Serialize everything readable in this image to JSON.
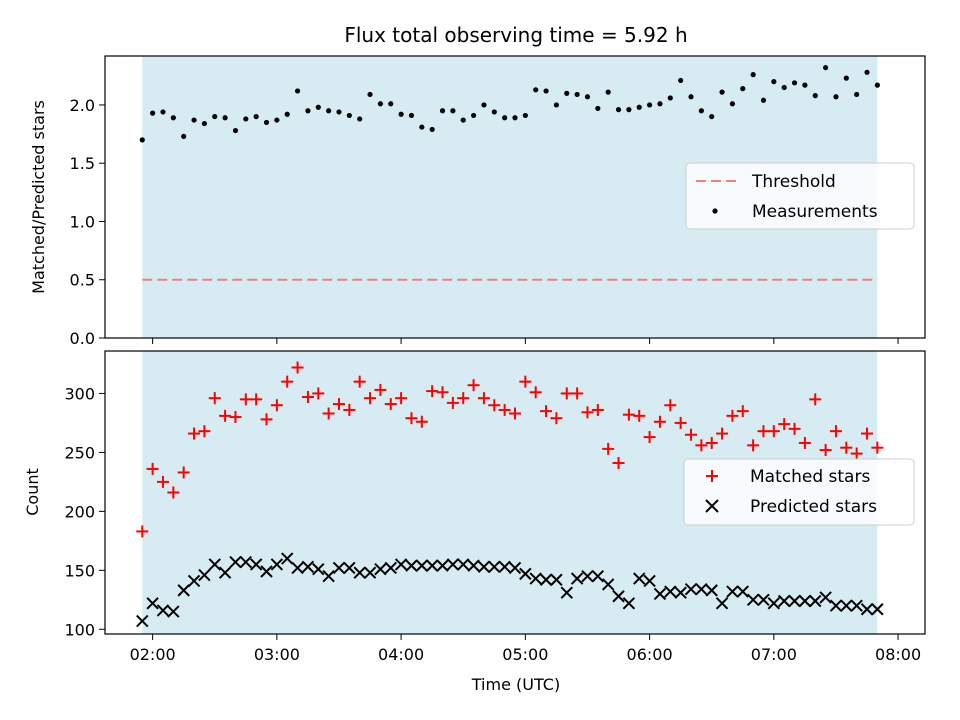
{
  "figure": {
    "title": "Flux total observing time = 5.92 h",
    "xlabel": "Time (UTC)"
  },
  "chart_data": [
    {
      "type": "scatter",
      "ylabel": "Matched/Predicted stars",
      "xlim": [
        "01:37",
        "08:13"
      ],
      "ylim": [
        0,
        2.42
      ],
      "yticks": [
        "0.0",
        "0.5",
        "1.0",
        "1.5",
        "2.0"
      ],
      "xticks": [
        "02:00",
        "03:00",
        "04:00",
        "05:00",
        "06:00",
        "07:00",
        "08:00"
      ],
      "shaded_span": [
        "01:55",
        "07:50"
      ],
      "shade_color": "#add8e6",
      "legend_position": "center-right",
      "threshold": {
        "name": "Threshold",
        "value": 0.5,
        "style": "dashed",
        "color": "#f08080"
      },
      "series": [
        {
          "name": "Measurements",
          "marker": "dot",
          "color": "#000000",
          "x": [
            "01:55",
            "02:00",
            "02:05",
            "02:10",
            "02:15",
            "02:20",
            "02:25",
            "02:30",
            "02:35",
            "02:40",
            "02:45",
            "02:50",
            "02:55",
            "03:00",
            "03:05",
            "03:10",
            "03:15",
            "03:20",
            "03:25",
            "03:30",
            "03:35",
            "03:40",
            "03:45",
            "03:50",
            "03:55",
            "04:00",
            "04:05",
            "04:10",
            "04:15",
            "04:20",
            "04:25",
            "04:30",
            "04:35",
            "04:40",
            "04:45",
            "04:50",
            "04:55",
            "05:00",
            "05:05",
            "05:10",
            "05:15",
            "05:20",
            "05:25",
            "05:30",
            "05:35",
            "05:40",
            "05:45",
            "05:50",
            "05:55",
            "06:00",
            "06:05",
            "06:10",
            "06:15",
            "06:20",
            "06:25",
            "06:30",
            "06:35",
            "06:40",
            "06:45",
            "06:50",
            "06:55",
            "07:00",
            "07:05",
            "07:10",
            "07:15",
            "07:20",
            "07:25",
            "07:30",
            "07:35",
            "07:40",
            "07:45",
            "07:50"
          ],
          "y": [
            1.7,
            1.93,
            1.94,
            1.89,
            1.73,
            1.87,
            1.84,
            1.9,
            1.89,
            1.78,
            1.88,
            1.9,
            1.85,
            1.87,
            1.92,
            2.12,
            1.95,
            1.98,
            1.95,
            1.94,
            1.91,
            1.88,
            2.09,
            2.01,
            2.01,
            1.92,
            1.91,
            1.81,
            1.79,
            1.95,
            1.95,
            1.87,
            1.91,
            2.0,
            1.94,
            1.89,
            1.89,
            1.91,
            2.13,
            2.12,
            2.0,
            2.1,
            2.09,
            2.07,
            1.97,
            2.11,
            1.96,
            1.96,
            1.98,
            2.0,
            2.01,
            2.06,
            2.21,
            2.07,
            1.95,
            1.9,
            2.11,
            2.01,
            2.14,
            2.26,
            2.04,
            2.2,
            2.15,
            2.19,
            2.17,
            2.08,
            2.32,
            2.07,
            2.23,
            2.09,
            2.28,
            2.17
          ]
        }
      ]
    },
    {
      "type": "scatter",
      "ylabel": "Count",
      "xlim": [
        "01:37",
        "08:13"
      ],
      "ylim": [
        96,
        336
      ],
      "yticks": [
        "100",
        "150",
        "200",
        "250",
        "300"
      ],
      "xticks": [
        "02:00",
        "03:00",
        "04:00",
        "05:00",
        "06:00",
        "07:00",
        "08:00"
      ],
      "shaded_span": [
        "01:55",
        "07:50"
      ],
      "shade_color": "#add8e6",
      "legend_position": "center-right",
      "series": [
        {
          "name": "Matched stars",
          "marker": "plus",
          "color": "#ff0000",
          "x": [
            "01:55",
            "02:00",
            "02:05",
            "02:10",
            "02:15",
            "02:20",
            "02:25",
            "02:30",
            "02:35",
            "02:40",
            "02:45",
            "02:50",
            "02:55",
            "03:00",
            "03:05",
            "03:10",
            "03:15",
            "03:20",
            "03:25",
            "03:30",
            "03:35",
            "03:40",
            "03:45",
            "03:50",
            "03:55",
            "04:00",
            "04:05",
            "04:10",
            "04:15",
            "04:20",
            "04:25",
            "04:30",
            "04:35",
            "04:40",
            "04:45",
            "04:50",
            "04:55",
            "05:00",
            "05:05",
            "05:10",
            "05:15",
            "05:20",
            "05:25",
            "05:30",
            "05:35",
            "05:40",
            "05:45",
            "05:50",
            "05:55",
            "06:00",
            "06:05",
            "06:10",
            "06:15",
            "06:20",
            "06:25",
            "06:30",
            "06:35",
            "06:40",
            "06:45",
            "06:50",
            "06:55",
            "07:00",
            "07:05",
            "07:10",
            "07:15",
            "07:20",
            "07:25",
            "07:30",
            "07:35",
            "07:40",
            "07:45",
            "07:50"
          ],
          "y": [
            183,
            236,
            225,
            216,
            233,
            266,
            268,
            296,
            281,
            280,
            295,
            295,
            278,
            290,
            310,
            322,
            297,
            300,
            283,
            291,
            286,
            310,
            296,
            303,
            291,
            296,
            279,
            276,
            302,
            301,
            292,
            296,
            307,
            296,
            290,
            286,
            283,
            310,
            301,
            285,
            279,
            300,
            300,
            284,
            286,
            253,
            241,
            282,
            281,
            263,
            276,
            290,
            275,
            265,
            256,
            258,
            266,
            281,
            285,
            256,
            268,
            268,
            274,
            270,
            258,
            295,
            252,
            268,
            254,
            249,
            266,
            254
          ]
        },
        {
          "name": "Predicted stars",
          "marker": "x",
          "color": "#000000",
          "x": [
            "01:55",
            "02:00",
            "02:05",
            "02:10",
            "02:15",
            "02:20",
            "02:25",
            "02:30",
            "02:35",
            "02:40",
            "02:45",
            "02:50",
            "02:55",
            "03:00",
            "03:05",
            "03:10",
            "03:15",
            "03:20",
            "03:25",
            "03:30",
            "03:35",
            "03:40",
            "03:45",
            "03:50",
            "03:55",
            "04:00",
            "04:05",
            "04:10",
            "04:15",
            "04:20",
            "04:25",
            "04:30",
            "04:35",
            "04:40",
            "04:45",
            "04:50",
            "04:55",
            "05:00",
            "05:05",
            "05:10",
            "05:15",
            "05:20",
            "05:25",
            "05:30",
            "05:35",
            "05:40",
            "05:45",
            "05:50",
            "05:55",
            "06:00",
            "06:05",
            "06:10",
            "06:15",
            "06:20",
            "06:25",
            "06:30",
            "06:35",
            "06:40",
            "06:45",
            "06:50",
            "06:55",
            "07:00",
            "07:05",
            "07:10",
            "07:15",
            "07:20",
            "07:25",
            "07:30",
            "07:35",
            "07:40",
            "07:45",
            "07:50"
          ],
          "y": [
            107,
            122,
            116,
            115,
            133,
            141,
            146,
            155,
            148,
            157,
            157,
            155,
            149,
            155,
            160,
            152,
            153,
            151,
            145,
            152,
            152,
            148,
            148,
            151,
            152,
            155,
            154,
            154,
            154,
            154,
            155,
            155,
            154,
            153,
            153,
            153,
            152,
            147,
            143,
            142,
            142,
            131,
            143,
            145,
            145,
            138,
            128,
            122,
            143,
            141,
            130,
            132,
            131,
            134,
            134,
            133,
            122,
            132,
            132,
            125,
            125,
            122,
            124,
            124,
            124,
            124,
            127,
            120,
            120,
            120,
            117,
            117
          ]
        }
      ]
    }
  ]
}
